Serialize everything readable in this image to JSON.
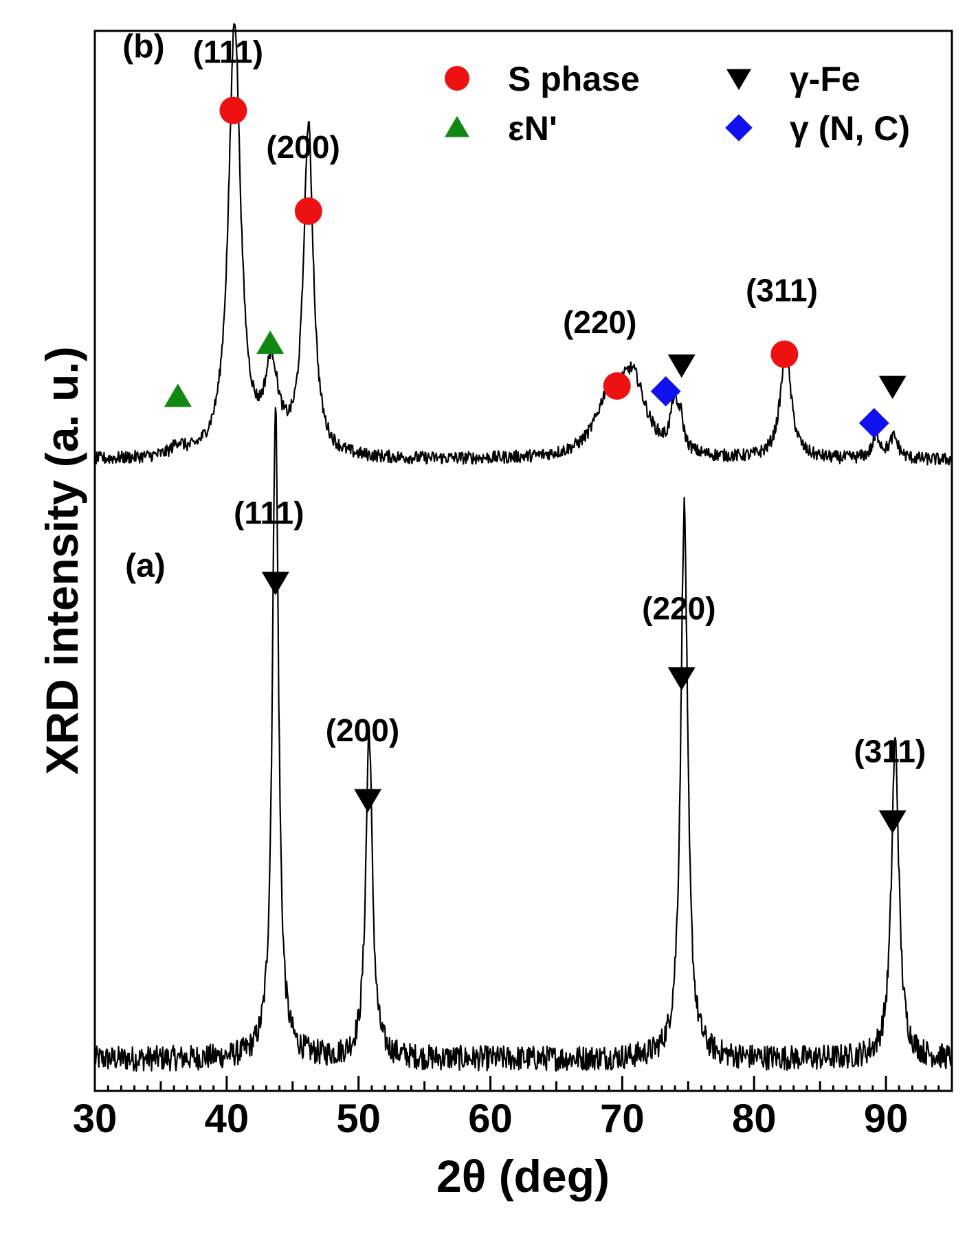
{
  "chart_data": {
    "type": "line",
    "xlabel": "2θ (deg)",
    "ylabel": "XRD intensity (a. u.)",
    "xlim": [
      30,
      95
    ],
    "ylim": [
      0,
      1
    ],
    "x_ticks": [
      30,
      40,
      50,
      60,
      70,
      80,
      90
    ],
    "y_ticks_shown": false,
    "grid": false,
    "legend_position": "top-right",
    "series": [
      {
        "panel": "(a)",
        "color": "#000000",
        "baseline": 0.03,
        "noise": 0.012,
        "peaks": [
          {
            "x": 43.7,
            "height": 0.62,
            "width": 0.28
          },
          {
            "x": 50.8,
            "height": 0.31,
            "width": 0.3
          },
          {
            "x": 74.7,
            "height": 0.52,
            "width": 0.32
          },
          {
            "x": 90.7,
            "height": 0.3,
            "width": 0.34
          }
        ]
      },
      {
        "panel": "(b)",
        "color": "#000000",
        "baseline": 0.595,
        "noise": 0.006,
        "peaks": [
          {
            "x": 36.3,
            "height": 0.01,
            "width": 0.5
          },
          {
            "x": 40.6,
            "height": 0.41,
            "width": 0.55
          },
          {
            "x": 43.4,
            "height": 0.08,
            "width": 0.6
          },
          {
            "x": 46.2,
            "height": 0.31,
            "width": 0.45
          },
          {
            "x": 69.0,
            "height": 0.05,
            "width": 1.2
          },
          {
            "x": 70.8,
            "height": 0.07,
            "width": 1.2
          },
          {
            "x": 73.9,
            "height": 0.04,
            "width": 0.3
          },
          {
            "x": 74.4,
            "height": 0.03,
            "width": 0.3
          },
          {
            "x": 82.4,
            "height": 0.1,
            "width": 0.5
          },
          {
            "x": 89.3,
            "height": 0.02,
            "width": 0.4
          },
          {
            "x": 90.6,
            "height": 0.02,
            "width": 0.4
          }
        ]
      }
    ],
    "markers": [
      {
        "phase": "S phase",
        "x": 40.5,
        "y": 0.925
      },
      {
        "phase": "S phase",
        "x": 46.2,
        "y": 0.83
      },
      {
        "phase": "S phase",
        "x": 69.6,
        "y": 0.665
      },
      {
        "phase": "S phase",
        "x": 82.3,
        "y": 0.695
      },
      {
        "phase": "εN'",
        "x": 36.3,
        "y": 0.655
      },
      {
        "phase": "εN'",
        "x": 43.3,
        "y": 0.705
      },
      {
        "phase": "γ-Fe",
        "x": 74.5,
        "y": 0.685
      },
      {
        "phase": "γ-Fe",
        "x": 90.5,
        "y": 0.665
      },
      {
        "phase": "γ (N, C)",
        "x": 73.3,
        "y": 0.66
      },
      {
        "phase": "γ (N, C)",
        "x": 89.1,
        "y": 0.63
      },
      {
        "phase": "γ-Fe",
        "x": 43.7,
        "y": 0.48
      },
      {
        "phase": "γ-Fe",
        "x": 50.7,
        "y": 0.275
      },
      {
        "phase": "γ-Fe",
        "x": 74.5,
        "y": 0.39
      },
      {
        "phase": "γ-Fe",
        "x": 90.5,
        "y": 0.255
      }
    ],
    "annotations": [
      {
        "text": "(111)",
        "x": 40.1,
        "y": 0.97
      },
      {
        "text": "(200)",
        "x": 45.8,
        "y": 0.88
      },
      {
        "text": "(220)",
        "x": 68.3,
        "y": 0.715
      },
      {
        "text": "(311)",
        "x": 82.1,
        "y": 0.745
      },
      {
        "text": "(111)",
        "x": 43.2,
        "y": 0.535
      },
      {
        "text": "(200)",
        "x": 50.3,
        "y": 0.33
      },
      {
        "text": "(220)",
        "x": 74.3,
        "y": 0.445
      },
      {
        "text": "(311)",
        "x": 90.3,
        "y": 0.31
      }
    ],
    "panel_labels": [
      {
        "text": "(b)",
        "x": 32.1,
        "y": 0.975
      },
      {
        "text": "(a)",
        "x": 32.3,
        "y": 0.485
      }
    ],
    "legend": [
      {
        "label": "S phase",
        "symbol": "circle",
        "color": "#ee1111"
      },
      {
        "label": "γ-Fe",
        "symbol": "triangle-down",
        "color": "#000000"
      },
      {
        "label": "εN'",
        "symbol": "triangle-up",
        "color": "#118811"
      },
      {
        "label": "γ (N, C)",
        "symbol": "diamond",
        "color": "#1111ee"
      }
    ]
  }
}
